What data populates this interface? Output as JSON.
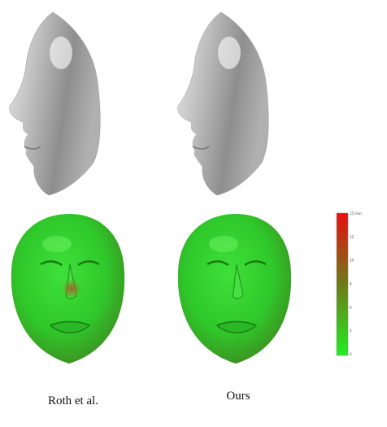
{
  "figure": {
    "captions": [
      "Roth et al.",
      "Ours"
    ],
    "colorbar": {
      "unit": "mm",
      "ticks": [
        "15",
        "12",
        "10",
        "8",
        "6",
        "4",
        "0"
      ]
    }
  }
}
